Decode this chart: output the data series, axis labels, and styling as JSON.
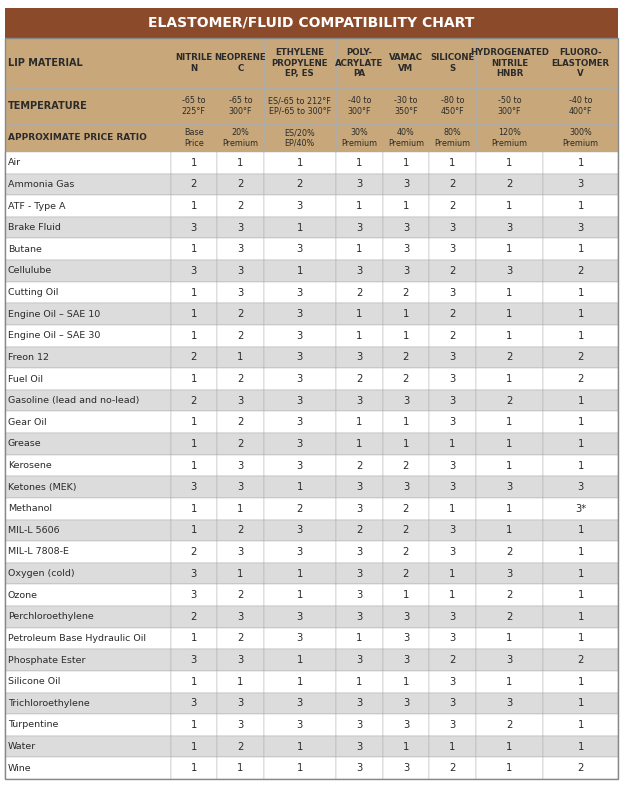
{
  "title": "ELASTOMER/FLUID COMPATIBILITY CHART",
  "title_bg": "#8B4A2A",
  "title_color": "#FFFFFF",
  "header_bg": "#C8A87A",
  "header_color": "#2B2B2B",
  "subheader_bg": "#C8A87A",
  "row_bg_odd": "#FFFFFF",
  "row_bg_even": "#DCDCDC",
  "border_color": "#AAAAAA",
  "text_color": "#2B2B2B",
  "columns": [
    "LIP MATERIAL",
    "NITRILE\nN",
    "NEOPRENE\nC",
    "ETHYLENE\nPROPYLENE\nEP, ES",
    "POLY-\nACRYLATE\nPA",
    "VAMAC\nVM",
    "SILICONE\nS",
    "HYDROGENATED\nNITRILE\nHNBR",
    "FLUORO-\nELASTOMER\nV"
  ],
  "temp_row": [
    "TEMPERATURE",
    "-65 to\n225°F",
    "-65 to\n300°F",
    "ES/-65 to 212°F\nEP/-65 to 300°F",
    "-40 to\n300°F",
    "-30 to\n350°F",
    "-80 to\n450°F",
    "-50 to\n300°F",
    "-40 to\n400°F"
  ],
  "price_row": [
    "APPROXIMATE PRICE RATIO",
    "Base\nPrice",
    "20%\nPremium",
    "ES/20%\nEP/40%",
    "30%\nPremium",
    "40%\nPremium",
    "80%\nPremium",
    "120%\nPremium",
    "300%\nPremium"
  ],
  "rows": [
    [
      "Air",
      "1",
      "1",
      "1",
      "1",
      "1",
      "1",
      "1",
      "1"
    ],
    [
      "Ammonia Gas",
      "2",
      "2",
      "2",
      "3",
      "3",
      "2",
      "2",
      "3"
    ],
    [
      "ATF - Type A",
      "1",
      "2",
      "3",
      "1",
      "1",
      "2",
      "1",
      "1"
    ],
    [
      "Brake Fluid",
      "3",
      "3",
      "1",
      "3",
      "3",
      "3",
      "3",
      "3"
    ],
    [
      "Butane",
      "1",
      "3",
      "3",
      "1",
      "3",
      "3",
      "1",
      "1"
    ],
    [
      "Cellulube",
      "3",
      "3",
      "1",
      "3",
      "3",
      "2",
      "3",
      "2"
    ],
    [
      "Cutting Oil",
      "1",
      "3",
      "3",
      "2",
      "2",
      "3",
      "1",
      "1"
    ],
    [
      "Engine Oil – SAE 10",
      "1",
      "2",
      "3",
      "1",
      "1",
      "2",
      "1",
      "1"
    ],
    [
      "Engine Oil – SAE 30",
      "1",
      "2",
      "3",
      "1",
      "1",
      "2",
      "1",
      "1"
    ],
    [
      "Freon 12",
      "2",
      "1",
      "3",
      "3",
      "2",
      "3",
      "2",
      "2"
    ],
    [
      "Fuel Oil",
      "1",
      "2",
      "3",
      "2",
      "2",
      "3",
      "1",
      "2"
    ],
    [
      "Gasoline (lead and no-lead)",
      "2",
      "3",
      "3",
      "3",
      "3",
      "3",
      "2",
      "1"
    ],
    [
      "Gear Oil",
      "1",
      "2",
      "3",
      "1",
      "1",
      "3",
      "1",
      "1"
    ],
    [
      "Grease",
      "1",
      "2",
      "3",
      "1",
      "1",
      "1",
      "1",
      "1"
    ],
    [
      "Kerosene",
      "1",
      "3",
      "3",
      "2",
      "2",
      "3",
      "1",
      "1"
    ],
    [
      "Ketones (MEK)",
      "3",
      "3",
      "1",
      "3",
      "3",
      "3",
      "3",
      "3"
    ],
    [
      "Methanol",
      "1",
      "1",
      "2",
      "3",
      "2",
      "1",
      "1",
      "3*"
    ],
    [
      "MIL-L 5606",
      "1",
      "2",
      "3",
      "2",
      "2",
      "3",
      "1",
      "1"
    ],
    [
      "MIL-L 7808-E",
      "2",
      "3",
      "3",
      "3",
      "2",
      "3",
      "2",
      "1"
    ],
    [
      "Oxygen (cold)",
      "3",
      "1",
      "1",
      "3",
      "2",
      "1",
      "3",
      "1"
    ],
    [
      "Ozone",
      "3",
      "2",
      "1",
      "3",
      "1",
      "1",
      "2",
      "1"
    ],
    [
      "Perchloroethylene",
      "2",
      "3",
      "3",
      "3",
      "3",
      "3",
      "2",
      "1"
    ],
    [
      "Petroleum Base Hydraulic Oil",
      "1",
      "2",
      "3",
      "1",
      "3",
      "3",
      "1",
      "1"
    ],
    [
      "Phosphate Ester",
      "3",
      "3",
      "1",
      "3",
      "3",
      "2",
      "3",
      "2"
    ],
    [
      "Silicone Oil",
      "1",
      "1",
      "1",
      "1",
      "1",
      "3",
      "1",
      "1"
    ],
    [
      "Trichloroethylene",
      "3",
      "3",
      "3",
      "3",
      "3",
      "3",
      "3",
      "1"
    ],
    [
      "Turpentine",
      "1",
      "3",
      "3",
      "3",
      "3",
      "3",
      "2",
      "1"
    ],
    [
      "Water",
      "1",
      "2",
      "1",
      "3",
      "1",
      "1",
      "1",
      "1"
    ],
    [
      "Wine",
      "1",
      "1",
      "1",
      "3",
      "3",
      "2",
      "1",
      "2"
    ]
  ],
  "figsize": [
    6.23,
    7.87
  ],
  "dpi": 100,
  "title_fontsize": 10.0,
  "header_fontsize_label": 7.0,
  "header_fontsize_col": 6.2,
  "temp_fontsize_label": 7.0,
  "temp_fontsize_val": 5.8,
  "price_fontsize_label": 6.5,
  "price_fontsize_val": 5.8,
  "data_fontsize_name": 6.8,
  "data_fontsize_val": 7.2
}
